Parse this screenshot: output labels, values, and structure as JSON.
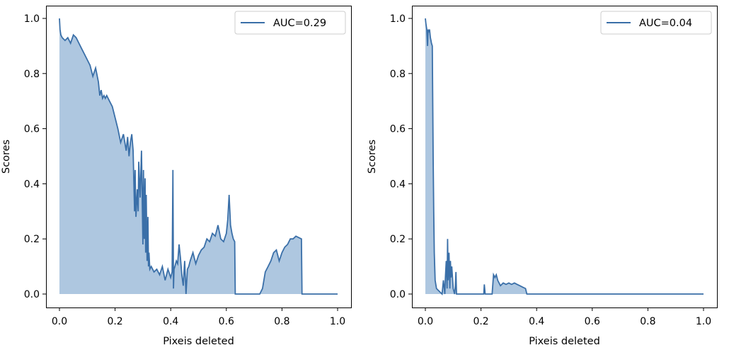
{
  "chart_data": [
    {
      "type": "area",
      "xlabel": "Pixeis deleted",
      "ylabel": "Scores",
      "xlim": [
        0,
        1
      ],
      "ylim": [
        0,
        1
      ],
      "xticks": [
        "0.0",
        "0.2",
        "0.4",
        "0.6",
        "0.8",
        "1.0"
      ],
      "yticks": [
        "0.0",
        "0.2",
        "0.4",
        "0.6",
        "0.8",
        "1.0"
      ],
      "legend": {
        "label": "AUC=0.29",
        "placement": "upper-right"
      },
      "series": [
        {
          "name": "AUC=0.29",
          "x": [
            0.0,
            0.002,
            0.005,
            0.01,
            0.02,
            0.03,
            0.04,
            0.05,
            0.06,
            0.07,
            0.08,
            0.09,
            0.1,
            0.11,
            0.12,
            0.13,
            0.14,
            0.145,
            0.15,
            0.155,
            0.16,
            0.165,
            0.17,
            0.18,
            0.19,
            0.2,
            0.21,
            0.22,
            0.23,
            0.24,
            0.245,
            0.25,
            0.255,
            0.26,
            0.265,
            0.27,
            0.272,
            0.275,
            0.28,
            0.283,
            0.285,
            0.29,
            0.295,
            0.3,
            0.302,
            0.305,
            0.308,
            0.31,
            0.312,
            0.315,
            0.318,
            0.32,
            0.322,
            0.325,
            0.33,
            0.34,
            0.35,
            0.36,
            0.37,
            0.38,
            0.39,
            0.4,
            0.405,
            0.408,
            0.41,
            0.412,
            0.415,
            0.42,
            0.425,
            0.43,
            0.435,
            0.44,
            0.445,
            0.45,
            0.455,
            0.46,
            0.465,
            0.47,
            0.48,
            0.49,
            0.5,
            0.51,
            0.52,
            0.53,
            0.54,
            0.55,
            0.56,
            0.57,
            0.58,
            0.59,
            0.6,
            0.605,
            0.61,
            0.615,
            0.62,
            0.625,
            0.63,
            0.632,
            0.64,
            0.72,
            0.73,
            0.74,
            0.75,
            0.76,
            0.77,
            0.78,
            0.79,
            0.8,
            0.81,
            0.82,
            0.83,
            0.84,
            0.85,
            0.86,
            0.87,
            0.872,
            0.9,
            1.0
          ],
          "y": [
            1.0,
            0.96,
            0.94,
            0.93,
            0.92,
            0.93,
            0.91,
            0.94,
            0.93,
            0.91,
            0.89,
            0.87,
            0.85,
            0.83,
            0.79,
            0.82,
            0.77,
            0.72,
            0.74,
            0.71,
            0.72,
            0.71,
            0.72,
            0.7,
            0.68,
            0.64,
            0.6,
            0.55,
            0.58,
            0.52,
            0.57,
            0.5,
            0.55,
            0.58,
            0.52,
            0.3,
            0.45,
            0.28,
            0.38,
            0.3,
            0.48,
            0.35,
            0.52,
            0.18,
            0.45,
            0.2,
            0.42,
            0.15,
            0.36,
            0.12,
            0.28,
            0.1,
            0.15,
            0.09,
            0.1,
            0.08,
            0.09,
            0.07,
            0.1,
            0.05,
            0.09,
            0.06,
            0.08,
            0.45,
            0.02,
            0.09,
            0.1,
            0.12,
            0.11,
            0.18,
            0.13,
            0.07,
            0.03,
            0.12,
            0.0,
            0.09,
            0.1,
            0.12,
            0.15,
            0.11,
            0.14,
            0.16,
            0.17,
            0.2,
            0.19,
            0.22,
            0.21,
            0.25,
            0.2,
            0.19,
            0.22,
            0.27,
            0.36,
            0.25,
            0.22,
            0.2,
            0.19,
            0.0,
            0.0,
            0.0,
            0.02,
            0.08,
            0.1,
            0.12,
            0.15,
            0.16,
            0.12,
            0.15,
            0.17,
            0.18,
            0.2,
            0.2,
            0.21,
            0.205,
            0.2,
            0.0,
            0.0,
            0.0
          ],
          "color": "#3a6fa8",
          "fill_color": "#aec7e0"
        }
      ]
    },
    {
      "type": "area",
      "xlabel": "Pixeis deleted",
      "ylabel": "Scores",
      "xlim": [
        0,
        1
      ],
      "ylim": [
        0,
        1
      ],
      "xticks": [
        "0.0",
        "0.2",
        "0.4",
        "0.6",
        "0.8",
        "1.0"
      ],
      "yticks": [
        "0.0",
        "0.2",
        "0.4",
        "0.6",
        "0.8",
        "1.0"
      ],
      "legend": {
        "label": "AUC=0.04",
        "placement": "upper-right"
      },
      "series": [
        {
          "name": "AUC=0.04",
          "x": [
            0.0,
            0.002,
            0.005,
            0.008,
            0.01,
            0.012,
            0.015,
            0.018,
            0.02,
            0.022,
            0.025,
            0.028,
            0.03,
            0.032,
            0.035,
            0.04,
            0.05,
            0.06,
            0.065,
            0.07,
            0.072,
            0.075,
            0.078,
            0.08,
            0.082,
            0.085,
            0.088,
            0.09,
            0.092,
            0.095,
            0.1,
            0.105,
            0.108,
            0.11,
            0.112,
            0.115,
            0.12,
            0.21,
            0.212,
            0.215,
            0.24,
            0.245,
            0.25,
            0.255,
            0.26,
            0.265,
            0.27,
            0.28,
            0.29,
            0.3,
            0.31,
            0.32,
            0.33,
            0.34,
            0.35,
            0.36,
            0.365,
            0.37,
            1.0
          ],
          "y": [
            1.0,
            0.98,
            0.96,
            0.9,
            0.96,
            0.95,
            0.96,
            0.93,
            0.92,
            0.91,
            0.9,
            0.5,
            0.3,
            0.15,
            0.05,
            0.02,
            0.01,
            0.0,
            0.05,
            0.0,
            0.06,
            0.12,
            0.02,
            0.2,
            0.05,
            0.15,
            0.02,
            0.12,
            0.06,
            0.1,
            0.02,
            0.0,
            0.03,
            0.08,
            0.0,
            0.0,
            0.0,
            0.0,
            0.035,
            0.0,
            0.0,
            0.07,
            0.06,
            0.07,
            0.05,
            0.04,
            0.03,
            0.04,
            0.035,
            0.04,
            0.035,
            0.04,
            0.035,
            0.03,
            0.025,
            0.02,
            0.0,
            0.0,
            0.0
          ],
          "color": "#3a6fa8",
          "fill_color": "#aec7e0"
        }
      ]
    }
  ]
}
